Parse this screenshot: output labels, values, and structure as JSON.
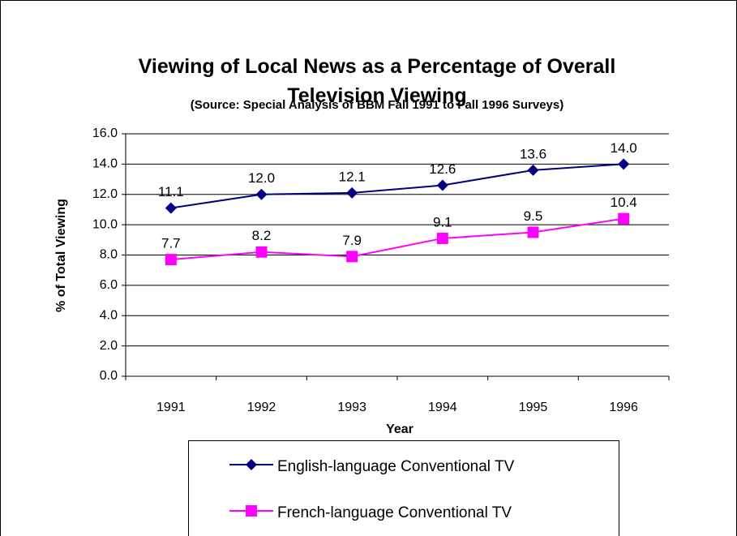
{
  "chart_data": {
    "type": "line",
    "title": "Viewing of Local News as a Percentage of Overall Television Viewing",
    "subtitle": "(Source: Special Analysis of BBM Fall 1991 to Fall 1996 Surveys)",
    "x_label": "Year",
    "y_label": "% of Total Viewing",
    "categories": [
      "1991",
      "1992",
      "1993",
      "1994",
      "1995",
      "1996"
    ],
    "series": [
      {
        "name": "English-language Conventional TV",
        "color": "#000080",
        "marker": "diamond",
        "values": [
          11.1,
          12.0,
          12.1,
          12.6,
          13.6,
          14.0
        ],
        "value_labels": [
          "11.1",
          "12.0",
          "12.1",
          "12.6",
          "13.6",
          "14.0"
        ]
      },
      {
        "name": "French-language Conventional TV",
        "color": "#ff00ff",
        "marker": "square",
        "values": [
          7.7,
          8.2,
          7.9,
          9.1,
          9.5,
          10.4
        ],
        "value_labels": [
          "7.7",
          "8.2",
          "7.9",
          "9.1",
          "9.5",
          "10.4"
        ]
      }
    ],
    "ylim": [
      0,
      16
    ],
    "yticks": [
      {
        "value": 0,
        "label": "0.0"
      },
      {
        "value": 2,
        "label": "2.0"
      },
      {
        "value": 4,
        "label": "4.0"
      },
      {
        "value": 6,
        "label": "6.0"
      },
      {
        "value": 8,
        "label": "8.0"
      },
      {
        "value": 10,
        "label": "10.0"
      },
      {
        "value": 12,
        "label": "12.0"
      },
      {
        "value": 14,
        "label": "14.0"
      },
      {
        "value": 16,
        "label": "16.0"
      }
    ],
    "grid": true,
    "legend": "bottom"
  }
}
